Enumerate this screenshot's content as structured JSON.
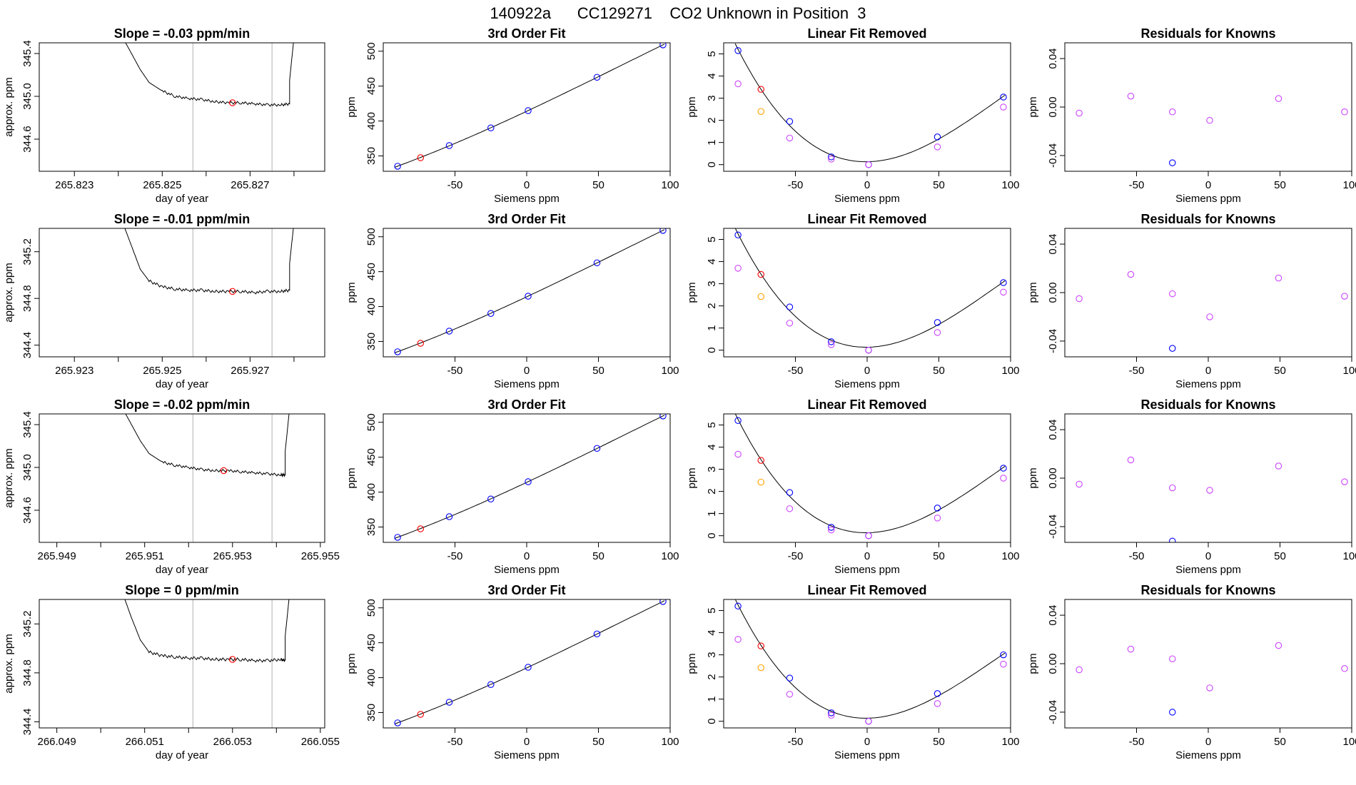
{
  "page": {
    "title": "140922a      CC129271    CO2 Unknown in Position  3"
  },
  "colors": {
    "known": "#0000ff",
    "unknown": "#ff0000",
    "linear_removed_known": "#cc44ff",
    "linear_removed_unknown": "#ffa500",
    "residual_known": "#cc44ff",
    "fit_line": "#000000",
    "trace": "#000000",
    "guide_line": "#bebebe"
  },
  "chart_data": [
    {
      "type": "line",
      "kind": "trace",
      "row": 0,
      "col": 0,
      "title": "Slope =  -0.03  ppm/min",
      "xlabel": "day of year",
      "ylabel": "approx. ppm",
      "xlim": [
        265.8222,
        265.8287
      ],
      "ylim": [
        344.3,
        345.5
      ],
      "xticks": [
        265.823,
        265.824,
        265.825,
        265.826,
        265.827,
        265.828
      ],
      "xtick_labels": [
        "265.823",
        "",
        "265.825",
        "",
        "265.827",
        ""
      ],
      "yticks": [
        344.6,
        345.0,
        345.4
      ],
      "ytick_labels": [
        "344.6",
        "345.0",
        "345.4"
      ],
      "vlines": [
        265.8257,
        265.8275
      ],
      "series": [
        {
          "x": [
            265.8241,
            265.8243,
            265.8245,
            265.8247,
            265.825,
            265.8253,
            265.8256,
            265.8259,
            265.8262,
            265.8265,
            265.8268,
            265.8271,
            265.8274,
            265.8277,
            265.8279,
            265.8279,
            265.828
          ],
          "y": [
            345.55,
            345.4,
            345.25,
            345.13,
            345.05,
            345.0,
            344.98,
            344.97,
            344.95,
            344.94,
            344.94,
            344.93,
            344.92,
            344.92,
            344.93,
            345.15,
            345.55
          ]
        }
      ],
      "marker": {
        "x": 265.8266,
        "y": 344.94
      }
    },
    {
      "type": "scatter",
      "kind": "fit",
      "row": 0,
      "col": 1,
      "title": "3rd Order Fit",
      "xlabel": "Siemens ppm",
      "ylabel": "ppm",
      "xlim": [
        -100,
        100
      ],
      "ylim": [
        328,
        512
      ],
      "xticks": [
        -50,
        0,
        50,
        100
      ],
      "yticks": [
        350,
        400,
        450,
        500
      ],
      "known_x": [
        -90,
        -54,
        -25,
        1,
        49,
        95
      ],
      "known_y": [
        335.2,
        364.8,
        390.1,
        414.9,
        462.6,
        509.1
      ],
      "unknown_x": [
        -74
      ],
      "unknown_y": [
        347.4
      ]
    },
    {
      "type": "scatter",
      "kind": "linear_removed",
      "row": 0,
      "col": 2,
      "title": "Linear Fit Removed",
      "xlabel": "Siemens ppm",
      "ylabel": "ppm",
      "xlim": [
        -100,
        100
      ],
      "ylim": [
        -0.3,
        5.5
      ],
      "xticks": [
        -50,
        0,
        50,
        100
      ],
      "yticks": [
        0,
        1,
        2,
        3,
        4,
        5
      ],
      "known_x": [
        -90,
        -54,
        -25,
        1,
        49,
        95
      ],
      "known_y": [
        5.15,
        1.95,
        0.35,
        0.0,
        1.25,
        3.05
      ],
      "known2_x": [
        -90,
        -54,
        -25,
        1,
        49,
        95
      ],
      "known2_y": [
        3.65,
        1.2,
        0.25,
        0.0,
        0.8,
        2.6
      ],
      "unknown_x": [
        -74
      ],
      "unknown_y": [
        3.4
      ],
      "unknown2_x": [
        -74
      ],
      "unknown2_y": [
        2.4
      ]
    },
    {
      "type": "scatter",
      "kind": "residual",
      "row": 0,
      "col": 3,
      "title": "Residuals for Knowns",
      "xlabel": "Siemens ppm",
      "ylabel": "ppm",
      "xlim": [
        -100,
        100
      ],
      "ylim": [
        -0.053,
        0.053
      ],
      "xticks": [
        -50,
        0,
        50,
        100
      ],
      "yticks": [
        -0.04,
        0.0,
        0.04
      ],
      "ytick_labels": [
        "-0.04",
        "0.00",
        "0.04"
      ],
      "x": [
        -90,
        -54,
        -25,
        1,
        49,
        95
      ],
      "y": [
        -0.005,
        0.009,
        -0.004,
        -0.011,
        0.007,
        -0.004
      ],
      "highlight_x": [
        -25
      ],
      "highlight_y": [
        -0.046
      ]
    },
    {
      "type": "line",
      "kind": "trace",
      "row": 1,
      "col": 0,
      "title": "Slope =  -0.01  ppm/min",
      "xlabel": "day of year",
      "ylabel": "approx. ppm",
      "xlim": [
        265.9222,
        265.9287
      ],
      "ylim": [
        344.3,
        345.4
      ],
      "xticks": [
        265.923,
        265.924,
        265.925,
        265.926,
        265.927,
        265.928
      ],
      "xtick_labels": [
        "265.923",
        "",
        "265.925",
        "",
        "265.927",
        ""
      ],
      "yticks": [
        344.4,
        344.8,
        345.2
      ],
      "ytick_labels": [
        "344.4",
        "344.8",
        "345.2"
      ],
      "vlines": [
        265.9257,
        265.9275
      ],
      "series": [
        {
          "x": [
            265.9241,
            265.9243,
            265.9245,
            265.9247,
            265.925,
            265.9253,
            265.9256,
            265.9259,
            265.9262,
            265.9265,
            265.9268,
            265.9271,
            265.9274,
            265.9277,
            265.9279,
            265.9279,
            265.928
          ],
          "y": [
            345.45,
            345.25,
            345.05,
            344.95,
            344.9,
            344.88,
            344.87,
            344.87,
            344.86,
            344.86,
            344.86,
            344.85,
            344.86,
            344.86,
            344.87,
            345.1,
            345.45
          ]
        }
      ],
      "marker": {
        "x": 265.9266,
        "y": 344.86
      }
    },
    {
      "type": "scatter",
      "kind": "fit",
      "row": 1,
      "col": 1,
      "title": "3rd Order Fit",
      "xlabel": "Siemens ppm",
      "ylabel": "ppm",
      "xlim": [
        -100,
        100
      ],
      "ylim": [
        328,
        512
      ],
      "xticks": [
        -50,
        0,
        50,
        100
      ],
      "yticks": [
        350,
        400,
        450,
        500
      ],
      "known_x": [
        -90,
        -54,
        -25,
        1,
        49,
        95
      ],
      "known_y": [
        335.2,
        364.8,
        390.1,
        414.9,
        462.6,
        509.1
      ],
      "unknown_x": [
        -74
      ],
      "unknown_y": [
        347.4
      ]
    },
    {
      "type": "scatter",
      "kind": "linear_removed",
      "row": 1,
      "col": 2,
      "title": "Linear Fit Removed",
      "xlabel": "Siemens ppm",
      "ylabel": "ppm",
      "xlim": [
        -100,
        100
      ],
      "ylim": [
        -0.3,
        5.5
      ],
      "xticks": [
        -50,
        0,
        50,
        100
      ],
      "yticks": [
        0,
        1,
        2,
        3,
        4,
        5
      ],
      "known_x": [
        -90,
        -54,
        -25,
        1,
        49,
        95
      ],
      "known_y": [
        5.2,
        1.95,
        0.38,
        0.0,
        1.25,
        3.05
      ],
      "known2_x": [
        -90,
        -54,
        -25,
        1,
        49,
        95
      ],
      "known2_y": [
        3.7,
        1.22,
        0.25,
        0.0,
        0.8,
        2.62
      ],
      "unknown_x": [
        -74
      ],
      "unknown_y": [
        3.42
      ],
      "unknown2_x": [
        -74
      ],
      "unknown2_y": [
        2.42
      ]
    },
    {
      "type": "scatter",
      "kind": "residual",
      "row": 1,
      "col": 3,
      "title": "Residuals for Knowns",
      "xlabel": "Siemens ppm",
      "ylabel": "ppm",
      "xlim": [
        -100,
        100
      ],
      "ylim": [
        -0.053,
        0.053
      ],
      "xticks": [
        -50,
        0,
        50,
        100
      ],
      "yticks": [
        -0.04,
        0.0,
        0.04
      ],
      "ytick_labels": [
        "-0.04",
        "0.00",
        "0.04"
      ],
      "x": [
        -90,
        -54,
        -25,
        1,
        49,
        95
      ],
      "y": [
        -0.005,
        0.015,
        -0.001,
        -0.02,
        0.012,
        -0.003
      ],
      "highlight_x": [
        -25
      ],
      "highlight_y": [
        -0.046
      ]
    },
    {
      "type": "line",
      "kind": "trace",
      "row": 2,
      "col": 0,
      "title": "Slope =  -0.02  ppm/min",
      "xlabel": "day of year",
      "ylabel": "approx. ppm",
      "xlim": [
        265.9486,
        265.9551
      ],
      "ylim": [
        344.3,
        345.5
      ],
      "xticks": [
        265.949,
        265.95,
        265.951,
        265.952,
        265.953,
        265.954,
        265.955
      ],
      "xtick_labels": [
        "265.949",
        "",
        "265.951",
        "",
        "265.953",
        "",
        "265.955"
      ],
      "yticks": [
        344.6,
        345.0,
        345.4
      ],
      "ytick_labels": [
        "344.6",
        "345.0",
        "345.4"
      ],
      "vlines": [
        265.9521,
        265.9539
      ],
      "series": [
        {
          "x": [
            265.9505,
            265.9507,
            265.9509,
            265.9511,
            265.9514,
            265.9517,
            265.952,
            265.9523,
            265.9526,
            265.9529,
            265.9532,
            265.9535,
            265.9538,
            265.9541,
            265.9542,
            265.9542,
            265.9543
          ],
          "y": [
            345.55,
            345.4,
            345.25,
            345.13,
            345.05,
            345.02,
            345.0,
            344.98,
            344.97,
            344.97,
            344.96,
            344.95,
            344.94,
            344.93,
            344.93,
            345.15,
            345.55
          ]
        }
      ],
      "marker": {
        "x": 265.9528,
        "y": 344.97
      }
    },
    {
      "type": "scatter",
      "kind": "fit",
      "row": 2,
      "col": 1,
      "title": "3rd Order Fit",
      "xlabel": "Siemens ppm",
      "ylabel": "ppm",
      "xlim": [
        -100,
        100
      ],
      "ylim": [
        328,
        512
      ],
      "xticks": [
        -50,
        0,
        50,
        100
      ],
      "yticks": [
        350,
        400,
        450,
        500
      ],
      "known_x": [
        -90,
        -54,
        -25,
        1,
        49,
        95
      ],
      "known_y": [
        335.2,
        364.8,
        390.1,
        414.9,
        462.6,
        509.1
      ],
      "unknown_x": [
        -74
      ],
      "unknown_y": [
        347.4
      ]
    },
    {
      "type": "scatter",
      "kind": "linear_removed",
      "row": 2,
      "col": 2,
      "title": "Linear Fit Removed",
      "xlabel": "Siemens ppm",
      "ylabel": "ppm",
      "xlim": [
        -100,
        100
      ],
      "ylim": [
        -0.3,
        5.5
      ],
      "xticks": [
        -50,
        0,
        50,
        100
      ],
      "yticks": [
        0,
        1,
        2,
        3,
        4,
        5
      ],
      "known_x": [
        -90,
        -54,
        -25,
        1,
        49,
        95
      ],
      "known_y": [
        5.2,
        1.95,
        0.38,
        0.0,
        1.25,
        3.05
      ],
      "known2_x": [
        -90,
        -54,
        -25,
        1,
        49,
        95
      ],
      "known2_y": [
        3.68,
        1.22,
        0.26,
        0.0,
        0.8,
        2.6
      ],
      "unknown_x": [
        -74
      ],
      "unknown_y": [
        3.4
      ],
      "unknown2_x": [
        -74
      ],
      "unknown2_y": [
        2.42
      ]
    },
    {
      "type": "scatter",
      "kind": "residual",
      "row": 2,
      "col": 3,
      "title": "Residuals for Knowns",
      "xlabel": "Siemens ppm",
      "ylabel": "ppm",
      "xlim": [
        -100,
        100
      ],
      "ylim": [
        -0.053,
        0.053
      ],
      "xticks": [
        -50,
        0,
        50,
        100
      ],
      "yticks": [
        -0.04,
        0.0,
        0.04
      ],
      "ytick_labels": [
        "-0.04",
        "0.00",
        "0.04"
      ],
      "x": [
        -90,
        -54,
        -25,
        1,
        49,
        95
      ],
      "y": [
        -0.005,
        0.015,
        -0.008,
        -0.01,
        0.01,
        -0.003
      ],
      "highlight_x": [
        -25
      ],
      "highlight_y": [
        -0.052
      ]
    },
    {
      "type": "line",
      "kind": "trace",
      "row": 3,
      "col": 0,
      "title": "Slope =  0  ppm/min",
      "xlabel": "day of year",
      "ylabel": "approx. ppm",
      "xlim": [
        266.0486,
        266.0551
      ],
      "ylim": [
        344.35,
        345.4
      ],
      "xticks": [
        266.049,
        266.05,
        266.051,
        266.052,
        266.053,
        266.054,
        266.055
      ],
      "xtick_labels": [
        "266.049",
        "",
        "266.051",
        "",
        "266.053",
        "",
        "266.055"
      ],
      "yticks": [
        344.4,
        344.8,
        345.2
      ],
      "ytick_labels": [
        "344.4",
        "344.8",
        "345.2"
      ],
      "vlines": [
        266.0521,
        266.0539
      ],
      "series": [
        {
          "x": [
            266.0505,
            266.0507,
            266.0509,
            266.0511,
            266.0514,
            266.0517,
            266.052,
            266.0523,
            266.0526,
            266.0529,
            266.0532,
            266.0535,
            266.0538,
            266.0541,
            266.0542,
            266.0542,
            266.0543
          ],
          "y": [
            345.45,
            345.25,
            345.07,
            344.97,
            344.94,
            344.93,
            344.92,
            344.92,
            344.91,
            344.91,
            344.91,
            344.9,
            344.9,
            344.91,
            344.9,
            345.1,
            345.45
          ]
        }
      ],
      "marker": {
        "x": 266.053,
        "y": 344.91
      }
    },
    {
      "type": "scatter",
      "kind": "fit",
      "row": 3,
      "col": 1,
      "title": "3rd Order Fit",
      "xlabel": "Siemens ppm",
      "ylabel": "ppm",
      "xlim": [
        -100,
        100
      ],
      "ylim": [
        328,
        512
      ],
      "xticks": [
        -50,
        0,
        50,
        100
      ],
      "yticks": [
        350,
        400,
        450,
        500
      ],
      "known_x": [
        -90,
        -54,
        -25,
        1,
        49,
        95
      ],
      "known_y": [
        335.2,
        364.8,
        390.1,
        414.9,
        462.6,
        509.1
      ],
      "unknown_x": [
        -74
      ],
      "unknown_y": [
        347.4
      ]
    },
    {
      "type": "scatter",
      "kind": "linear_removed",
      "row": 3,
      "col": 2,
      "title": "Linear Fit Removed",
      "xlabel": "Siemens ppm",
      "ylabel": "ppm",
      "xlim": [
        -100,
        100
      ],
      "ylim": [
        -0.3,
        5.5
      ],
      "xticks": [
        -50,
        0,
        50,
        100
      ],
      "yticks": [
        0,
        1,
        2,
        3,
        4,
        5
      ],
      "known_x": [
        -90,
        -54,
        -25,
        1,
        49,
        95
      ],
      "known_y": [
        5.2,
        1.95,
        0.38,
        0.0,
        1.25,
        3.0
      ],
      "known2_x": [
        -90,
        -54,
        -25,
        1,
        49,
        95
      ],
      "known2_y": [
        3.7,
        1.22,
        0.27,
        0.0,
        0.8,
        2.58
      ],
      "unknown_x": [
        -74
      ],
      "unknown_y": [
        3.4
      ],
      "unknown2_x": [
        -74
      ],
      "unknown2_y": [
        2.42
      ]
    },
    {
      "type": "scatter",
      "kind": "residual",
      "row": 3,
      "col": 3,
      "title": "Residuals for Knowns",
      "xlabel": "Siemens ppm",
      "ylabel": "ppm",
      "xlim": [
        -100,
        100
      ],
      "ylim": [
        -0.053,
        0.053
      ],
      "xticks": [
        -50,
        0,
        50,
        100
      ],
      "yticks": [
        -0.04,
        0.0,
        0.04
      ],
      "ytick_labels": [
        "-0.04",
        "0.00",
        "0.04"
      ],
      "x": [
        -90,
        -54,
        -25,
        1,
        49,
        95
      ],
      "y": [
        -0.005,
        0.012,
        0.004,
        -0.02,
        0.015,
        -0.004
      ],
      "highlight_x": [
        -25
      ],
      "highlight_y": [
        -0.04
      ]
    }
  ]
}
